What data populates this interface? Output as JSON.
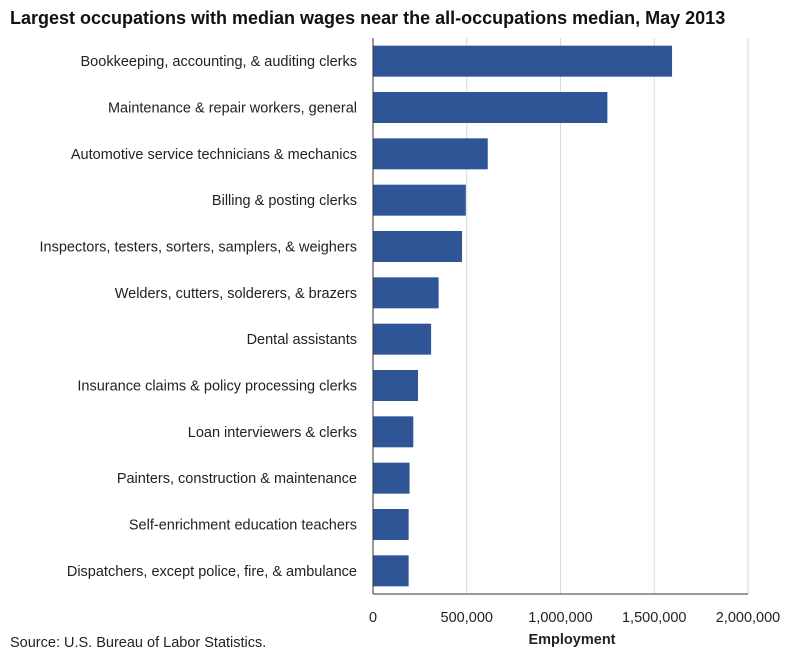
{
  "title": "Largest occupations with median wages near the all-occupations median, May 2013",
  "source": "Source: U.S. Bureau of Labor Statistics.",
  "colors": {
    "bar": "#2f5597",
    "grid": "#d9d9d9",
    "axis": "#333333"
  },
  "chart_data": {
    "type": "bar",
    "orientation": "horizontal",
    "xlabel": "Employment",
    "ylabel": "",
    "xlim": [
      0,
      2000000
    ],
    "xticks": [
      0,
      500000,
      1000000,
      1500000,
      2000000
    ],
    "xtick_labels": [
      "0",
      "500,000",
      "1,000,000",
      "1,500,000",
      "2,000,000"
    ],
    "grid": "vertical",
    "legend": "none",
    "categories": [
      "Bookkeeping, accounting, & auditing clerks",
      "Maintenance & repair workers, general",
      "Automotive service technicians & mechanics",
      "Billing & posting clerks",
      "Inspectors, testers, sorters, samplers, & weighers",
      "Welders, cutters, solderers, & brazers",
      "Dental assistants",
      "Insurance claims & policy processing clerks",
      "Loan interviewers & clerks",
      "Painters, construction & maintenance",
      "Self-enrichment education teachers",
      "Dispatchers, except police, fire, & ambulance"
    ],
    "values": [
      1595000,
      1250000,
      612000,
      495000,
      475000,
      350000,
      310000,
      240000,
      215000,
      195000,
      190000,
      190000
    ]
  }
}
